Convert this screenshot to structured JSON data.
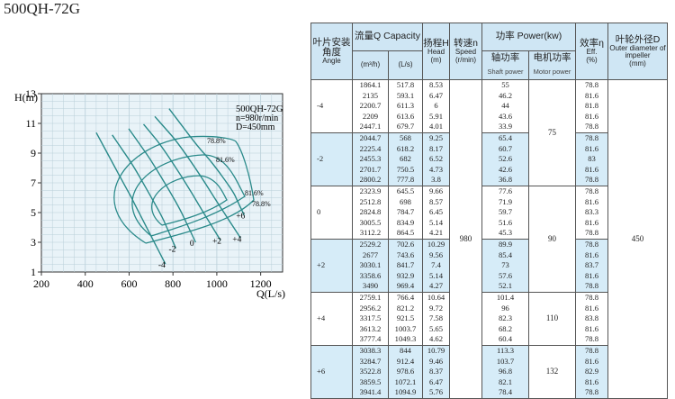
{
  "model": "500QH-72G",
  "chart_data": {
    "type": "line",
    "title": "500QH-72G",
    "legend_note": [
      "500QH-72G",
      "n=980r/min",
      "D=450mm"
    ],
    "xlabel": "Q(L/s)",
    "ylabel": "H(m)",
    "xlim": [
      200,
      1300
    ],
    "ylim": [
      1,
      13
    ],
    "x_ticks": [
      "200",
      "400",
      "600",
      "800",
      "1000",
      "1200"
    ],
    "y_ticks": [
      "1",
      "3",
      "5",
      "7",
      "9",
      "11",
      "13"
    ],
    "angle_labels": [
      "-4",
      "-2",
      "0",
      "+2",
      "+4",
      "+6"
    ],
    "efficiency_labels": [
      "78.8%",
      "81.6%",
      "81.6%",
      "78.8%"
    ],
    "series": [
      {
        "name": "-4",
        "x": [
          517.8,
          593.1,
          611.3,
          613.6,
          679.7
        ],
        "y": [
          8.53,
          6.47,
          6,
          5.91,
          4.01
        ]
      },
      {
        "name": "-2",
        "x": [
          568,
          618.2,
          682,
          750.5,
          777.8
        ],
        "y": [
          9.25,
          8.17,
          6.52,
          4.73,
          3.8
        ]
      },
      {
        "name": "0",
        "x": [
          645.5,
          698,
          784.7,
          834.9,
          864.5
        ],
        "y": [
          9.66,
          8.57,
          6.45,
          5.14,
          4.21
        ]
      },
      {
        "name": "+2",
        "x": [
          702.6,
          743.6,
          841.7,
          932.9,
          969.4
        ],
        "y": [
          10.29,
          9.56,
          7.4,
          5.14,
          4.27
        ]
      },
      {
        "name": "+4",
        "x": [
          766.4,
          821.2,
          921.5,
          1003.7,
          1049.3
        ],
        "y": [
          10.64,
          9.72,
          7.58,
          5.65,
          4.62
        ]
      },
      {
        "name": "+6",
        "x": [
          844,
          912.4,
          978.6,
          1072.1,
          1094.9
        ],
        "y": [
          10.79,
          9.46,
          8.37,
          6.47,
          5.76
        ]
      }
    ]
  },
  "table": {
    "headers": {
      "angle_cn": "叶片安装角度",
      "angle_en": "Angle",
      "capacity": "流量Q Capacity",
      "q_m3h": "(m³/h)",
      "q_ls": "(L/s)",
      "head_cn": "扬程H",
      "head_en": "Head",
      "head_unit": "(m)",
      "speed_cn": "转速n",
      "speed_en": "Speed",
      "speed_unit": "(r/min)",
      "power": "功率 Power(kw)",
      "shaft_cn": "轴功率",
      "shaft_en": "Shaft power",
      "motor_cn": "电机功率",
      "motor_en": "Motor power",
      "eff_cn": "效率η",
      "eff_en": "Eff.",
      "eff_unit": "(%)",
      "dia_cn": "叶轮外径D",
      "dia_en": "Outer diameter of impeller",
      "dia_unit": "(mm)"
    },
    "speed": "980",
    "diameter": "450",
    "groups": [
      {
        "angle": "-4",
        "motor": "75",
        "q_m3h": [
          "1864.1",
          "2135",
          "2200.7",
          "2209",
          "2447.1"
        ],
        "q_ls": [
          "517.8",
          "593.1",
          "611.3",
          "613.6",
          "679.7"
        ],
        "head": [
          "8.53",
          "6.47",
          "6",
          "5.91",
          "4.01"
        ],
        "shaft": [
          "55",
          "46.2",
          "44",
          "43.6",
          "33.9"
        ],
        "eff": [
          "78.8",
          "81.6",
          "81.8",
          "81.6",
          "78.8"
        ]
      },
      {
        "angle": "-2",
        "motor": "",
        "q_m3h": [
          "2044.7",
          "2225.4",
          "2455.3",
          "2701.7",
          "2800.2"
        ],
        "q_ls": [
          "568",
          "618.2",
          "682",
          "750.5",
          "777.8"
        ],
        "head": [
          "9.25",
          "8.17",
          "6.52",
          "4.73",
          "3.8"
        ],
        "shaft": [
          "65.4",
          "60.7",
          "52.6",
          "42.6",
          "36.8"
        ],
        "eff": [
          "78.8",
          "81.6",
          "83",
          "81.6",
          "78.8"
        ]
      },
      {
        "angle": "0",
        "motor": "90",
        "q_m3h": [
          "2323.9",
          "2512.8",
          "2824.8",
          "3005.5",
          "3112.2"
        ],
        "q_ls": [
          "645.5",
          "698",
          "784.7",
          "834.9",
          "864.5"
        ],
        "head": [
          "9.66",
          "8.57",
          "6.45",
          "5.14",
          "4.21"
        ],
        "shaft": [
          "77.6",
          "71.9",
          "59.7",
          "51.6",
          "45.3"
        ],
        "eff": [
          "78.8",
          "81.6",
          "83.3",
          "81.6",
          "78.8"
        ]
      },
      {
        "angle": "+2",
        "motor": "",
        "q_m3h": [
          "2529.2",
          "2677",
          "3030.1",
          "3358.6",
          "3490"
        ],
        "q_ls": [
          "702.6",
          "743.6",
          "841.7",
          "932.9",
          "969.4"
        ],
        "head": [
          "10.29",
          "9.56",
          "7.4",
          "5.14",
          "4.27"
        ],
        "shaft": [
          "89.9",
          "85.4",
          "73",
          "57.6",
          "52.1"
        ],
        "eff": [
          "78.8",
          "81.6",
          "83.7",
          "81.6",
          "78.8"
        ]
      },
      {
        "angle": "+4",
        "motor": "110",
        "q_m3h": [
          "2759.1",
          "2956.2",
          "3317.5",
          "3613.2",
          "3777.4"
        ],
        "q_ls": [
          "766.4",
          "821.2",
          "921.5",
          "1003.7",
          "1049.3"
        ],
        "head": [
          "10.64",
          "9.72",
          "7.58",
          "5.65",
          "4.62"
        ],
        "shaft": [
          "101.4",
          "96",
          "82.3",
          "68.2",
          "60.4"
        ],
        "eff": [
          "78.8",
          "81.6",
          "83.8",
          "81.6",
          "78.8"
        ]
      },
      {
        "angle": "+6",
        "motor": "132",
        "q_m3h": [
          "3038.3",
          "3284.7",
          "3522.8",
          "3859.5",
          "3941.4"
        ],
        "q_ls": [
          "844",
          "912.4",
          "978.6",
          "1072.1",
          "1094.9"
        ],
        "head": [
          "10.79",
          "9.46",
          "8.37",
          "6.47",
          "5.76"
        ],
        "shaft": [
          "113.3",
          "103.7",
          "96.8",
          "82.1",
          "78.4"
        ],
        "eff": [
          "78.8",
          "81.6",
          "82.9",
          "81.6",
          "78.8"
        ]
      }
    ]
  },
  "colors": {
    "header_bg": "#cfe6f4",
    "band_bg": "#d6ecf8",
    "grid_bg": "#e9f3f8",
    "curve": "#2a8a8a"
  }
}
